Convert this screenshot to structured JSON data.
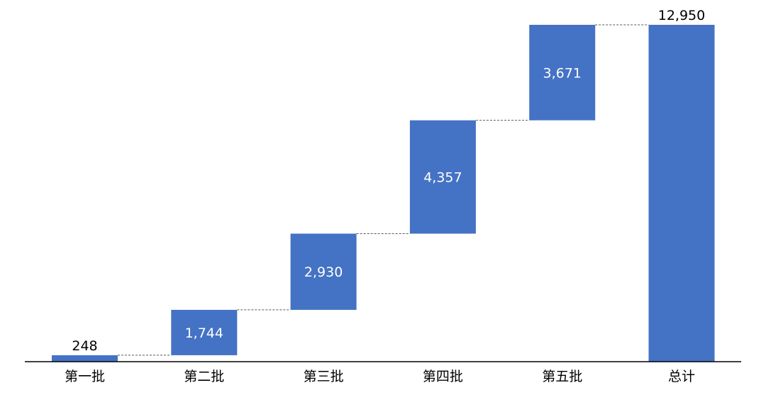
{
  "chart_data": {
    "type": "waterfall",
    "title": "",
    "xlabel": "",
    "ylabel": "",
    "categories": [
      "第一批",
      "第二批",
      "第三批",
      "第四批",
      "第五批",
      "总计"
    ],
    "values": [
      248,
      1744,
      2930,
      4357,
      3671,
      12950
    ],
    "data_labels": [
      "248",
      "1,744",
      "2,930",
      "4,357",
      "3,671",
      "12,950"
    ],
    "is_total": [
      false,
      false,
      false,
      false,
      false,
      true
    ],
    "ylim": [
      0,
      12950
    ],
    "grid": false,
    "legend": "none",
    "colors": {
      "bar": "#4472C4",
      "connector": "#595959",
      "axis": "#000000"
    }
  }
}
